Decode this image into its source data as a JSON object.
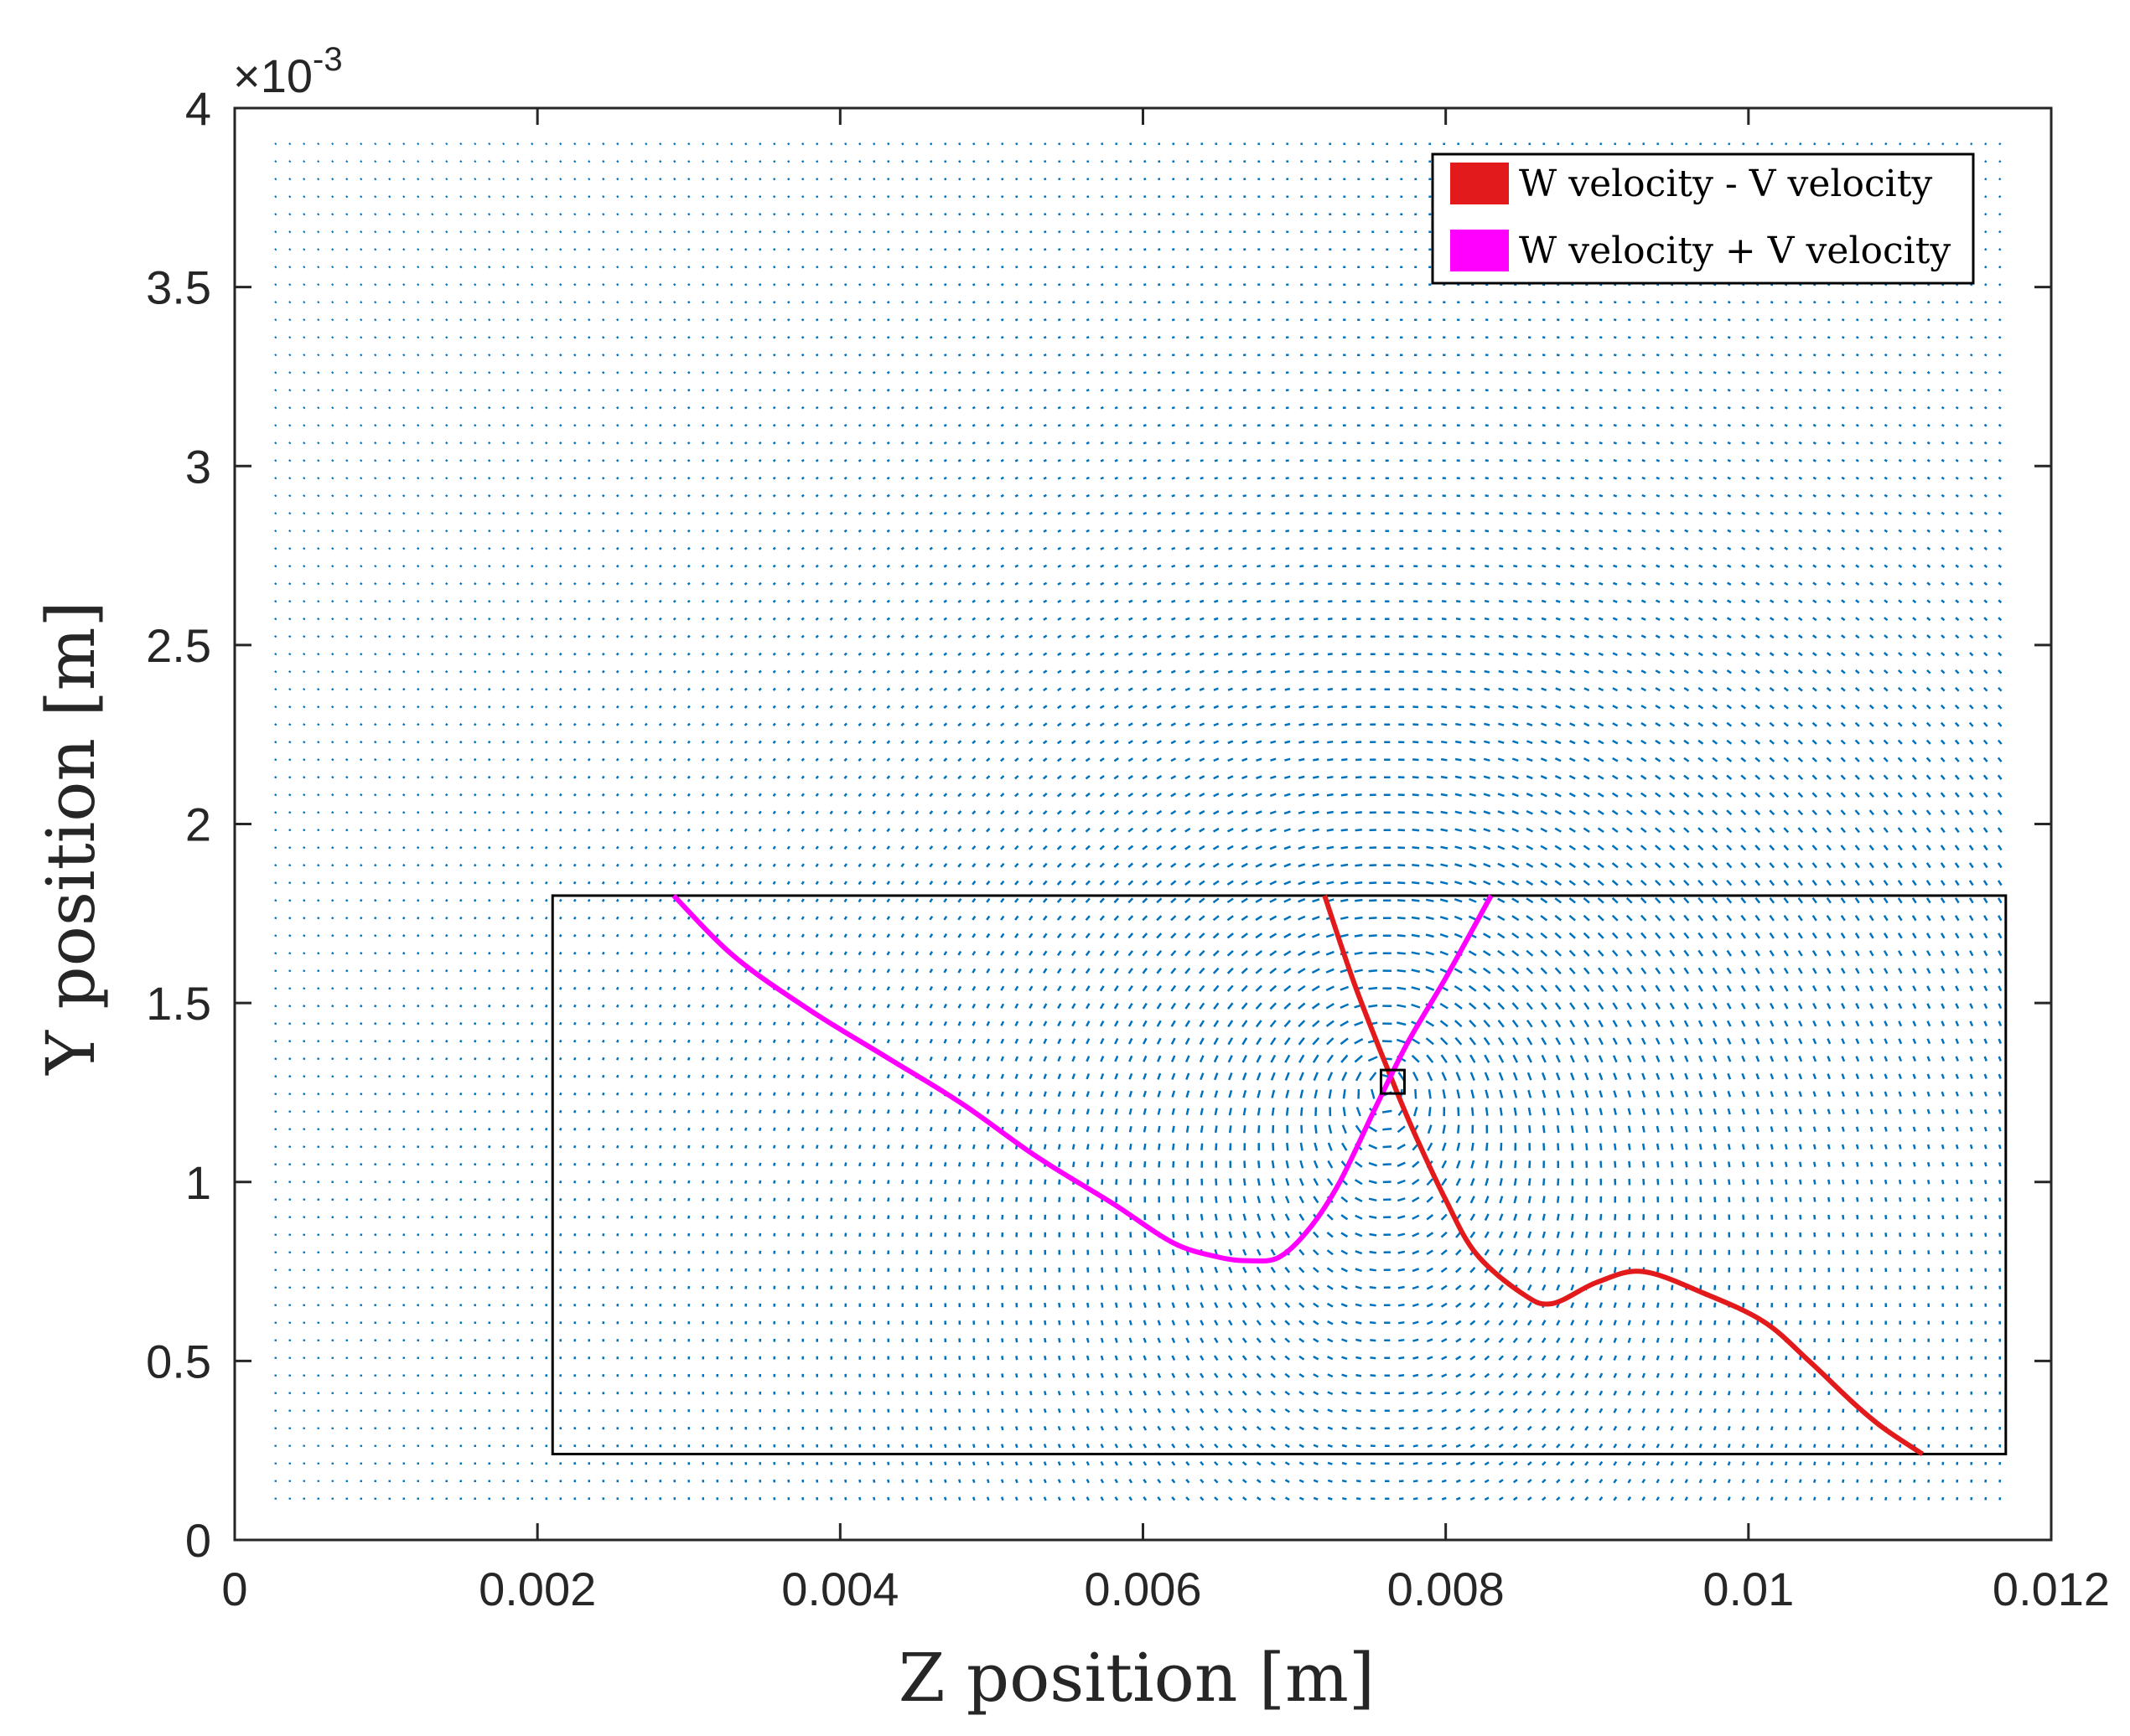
{
  "chart_data": {
    "type": "quiver",
    "title": "",
    "xlabel": "Z position [m]",
    "ylabel": "Y position [m]",
    "xlim": [
      0,
      0.012
    ],
    "ylim": [
      0,
      0.004
    ],
    "xticks": [
      0,
      0.002,
      0.004,
      0.006,
      0.008,
      0.01,
      0.012
    ],
    "xtick_labels": [
      "0",
      "0.002",
      "0.004",
      "0.006",
      "0.008",
      "0.01",
      "0.012"
    ],
    "yticks": [
      0,
      0.0005,
      0.001,
      0.0015,
      0.002,
      0.0025,
      0.003,
      0.0035,
      0.004
    ],
    "ytick_labels": [
      "0",
      "0.5",
      "1",
      "1.5",
      "2",
      "2.5",
      "3",
      "3.5",
      "4"
    ],
    "y_exponent_label": "×10",
    "y_exponent_power": "-3",
    "legend_location": "top-right",
    "vector_field": {
      "color": "#0072BD",
      "z_range": [
        0.00027,
        0.0117
      ],
      "y_range": [
        0.0001,
        0.0039
      ],
      "vortex_center": [
        0.0076,
        0.00128
      ]
    },
    "region_box": {
      "z": [
        0.0021,
        0.0117
      ],
      "y": [
        0.00024,
        0.0018
      ]
    },
    "marker_box": {
      "z": 0.00765,
      "y": 0.00128
    },
    "series": [
      {
        "name": "W velocity - V velocity",
        "color": "#E31A1C",
        "z": [
          0.0072,
          0.0074,
          0.00765,
          0.0078,
          0.008,
          0.0082,
          0.0085,
          0.0087,
          0.009,
          0.0093,
          0.0097,
          0.0101,
          0.0104,
          0.0107,
          0.0109,
          0.01115
        ],
        "y": [
          0.0018,
          0.00155,
          0.00128,
          0.00113,
          0.00095,
          0.0008,
          0.00069,
          0.00066,
          0.00072,
          0.00075,
          0.00069,
          0.00061,
          0.0005,
          0.00038,
          0.00031,
          0.00024
        ]
      },
      {
        "name": "W velocity + V velocity",
        "color": "#FF00FF",
        "z": [
          0.0029,
          0.0033,
          0.0038,
          0.0043,
          0.0048,
          0.0053,
          0.0058,
          0.0062,
          0.0065,
          0.0067,
          0.0069,
          0.0071,
          0.0073,
          0.00755,
          0.00775,
          0.008,
          0.0083
        ],
        "y": [
          0.0018,
          0.00163,
          0.00148,
          0.00135,
          0.00122,
          0.00107,
          0.00094,
          0.00083,
          0.00079,
          0.00078,
          0.00079,
          0.00087,
          0.001,
          0.00122,
          0.00139,
          0.00157,
          0.0018
        ]
      }
    ]
  }
}
